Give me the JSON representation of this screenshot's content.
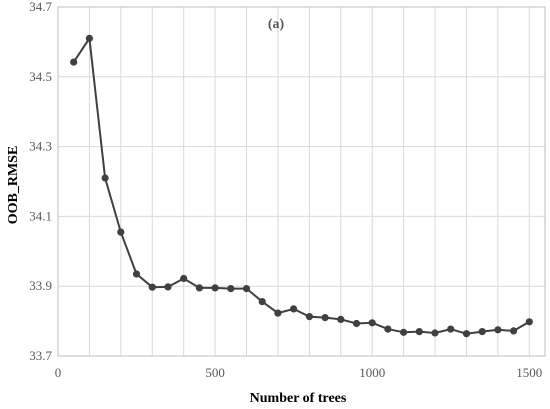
{
  "chart_data": {
    "type": "line",
    "annotation": "(a)",
    "xlabel": "Number of trees",
    "ylabel": "OOB_RMSE",
    "xlim": [
      0,
      1550
    ],
    "ylim": [
      33.7,
      34.7
    ],
    "x_ticks": [
      0,
      500,
      1000,
      1500
    ],
    "y_ticks": [
      33.7,
      33.9,
      34.1,
      34.3,
      34.5,
      34.7
    ],
    "x_tick_labels": [
      "0",
      "500",
      "1000",
      "1500"
    ],
    "y_tick_labels": [
      "33.7",
      "33.9",
      "34.1",
      "34.3",
      "34.5",
      "34.7"
    ],
    "grid": true,
    "colors": {
      "series": "#404040",
      "grid": "#d9d9d9",
      "frame": "#bfbfbf"
    },
    "series": [
      {
        "x": [
          50,
          100,
          150,
          200,
          250,
          300,
          350,
          400,
          450,
          500,
          550,
          600,
          650,
          700,
          750,
          800,
          850,
          900,
          950,
          1000,
          1050,
          1100,
          1150,
          1200,
          1250,
          1300,
          1350,
          1400,
          1450,
          1500
        ],
        "values": [
          34.542,
          34.61,
          34.21,
          34.055,
          33.935,
          33.897,
          33.898,
          33.922,
          33.895,
          33.895,
          33.893,
          33.893,
          33.856,
          33.823,
          33.835,
          33.813,
          33.81,
          33.805,
          33.793,
          33.795,
          33.777,
          33.768,
          33.77,
          33.766,
          33.777,
          33.764,
          33.77,
          33.775,
          33.772,
          33.798
        ]
      }
    ]
  }
}
